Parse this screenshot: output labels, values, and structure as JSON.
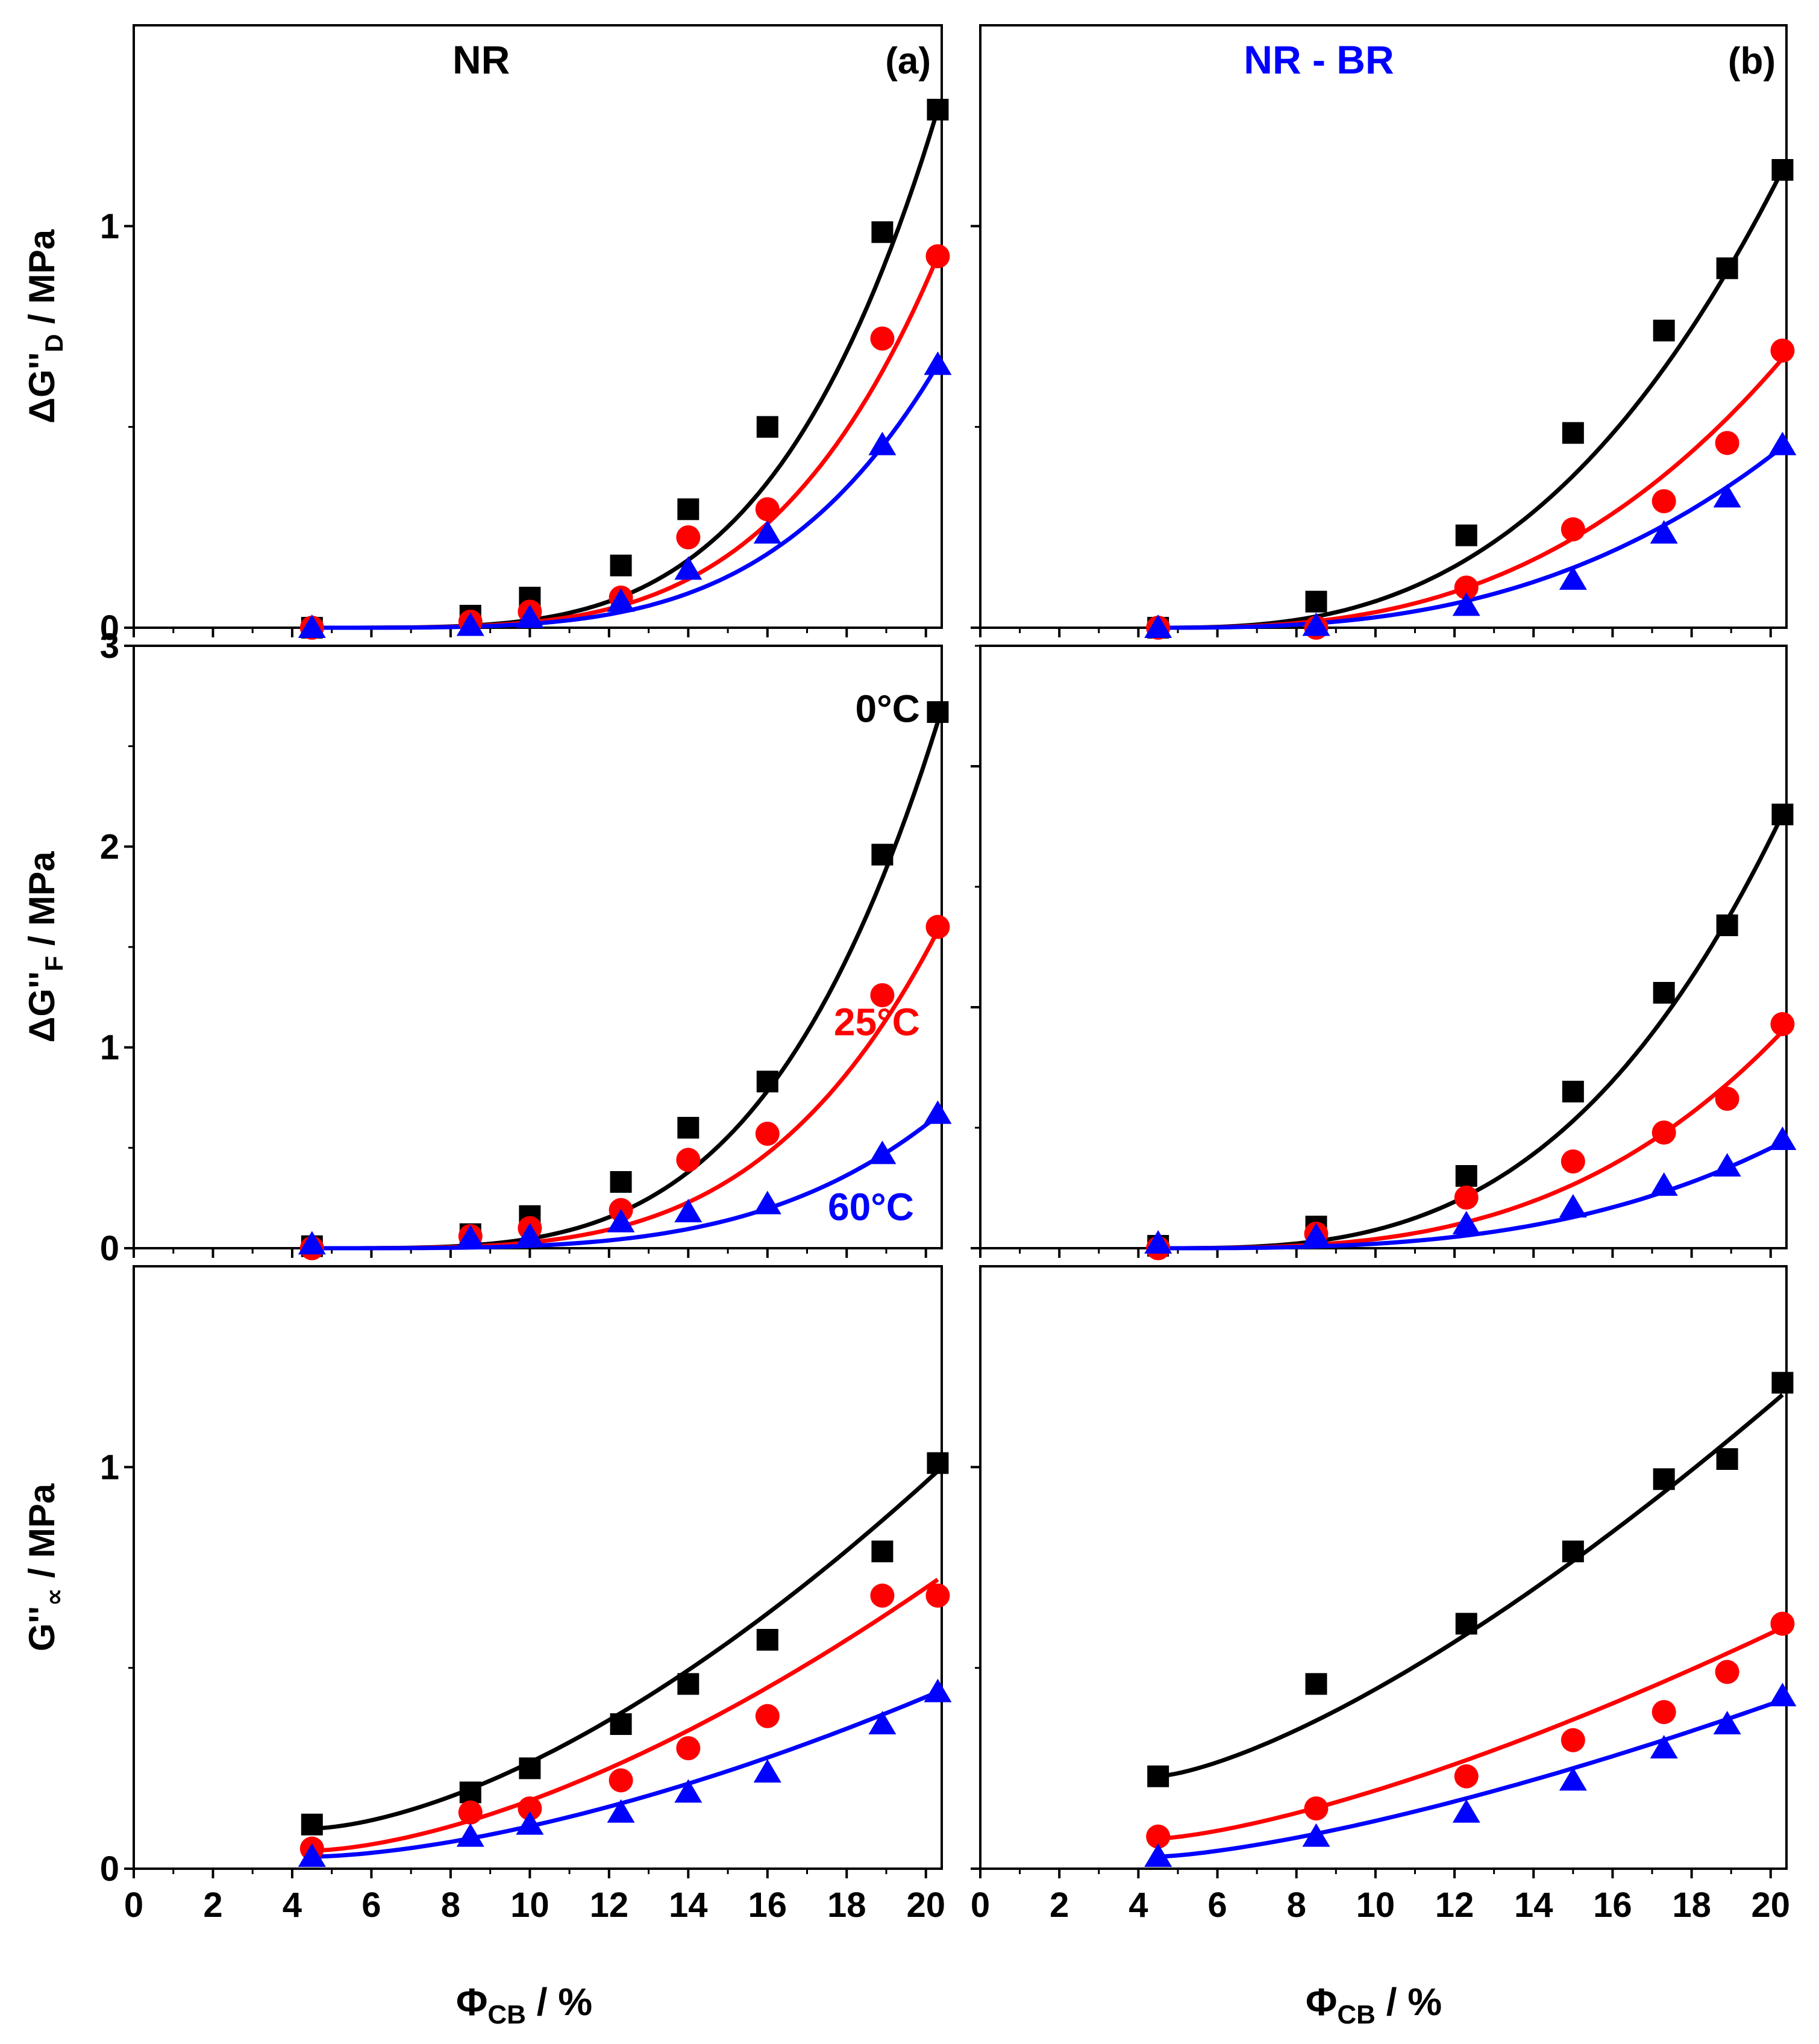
{
  "colors": {
    "black": "#000000",
    "red": "#ff0000",
    "blue": "#0000ff"
  },
  "series_meta": [
    {
      "key": "T0",
      "marker": "square",
      "color": "#000000"
    },
    {
      "key": "T25",
      "marker": "circle",
      "color": "#ff0000"
    },
    {
      "key": "T60",
      "marker": "triangle",
      "color": "#0000ff"
    }
  ],
  "chart_data": [
    {
      "id": "a-top",
      "type": "scatter",
      "column": 0,
      "row": 0,
      "title": "NR",
      "title_color": "#000000",
      "panel_label": "(a)",
      "ylabel_main": "ΔG''",
      "ylabel_sub": "D",
      "ylabel_unit": " / MPa",
      "ylim": [
        0,
        1.5
      ],
      "yticks": [
        0,
        1
      ],
      "yminor": [
        0.5
      ],
      "xlim": [
        0,
        20.4
      ],
      "xticks": [
        0,
        2,
        4,
        6,
        8,
        10,
        12,
        14,
        16,
        18,
        20
      ],
      "x": [
        4.5,
        8.5,
        10,
        12.3,
        14,
        16,
        18.9,
        20.3
      ],
      "series": [
        {
          "name": "0°C",
          "values": [
            0.0,
            0.03,
            0.075,
            0.155,
            0.295,
            0.5,
            0.985,
            1.29
          ]
        },
        {
          "name": "25°C",
          "values": [
            0.0,
            0.015,
            0.04,
            0.075,
            0.225,
            0.295,
            0.72,
            0.925
          ]
        },
        {
          "name": "60°C",
          "values": [
            0.0,
            0.005,
            0.025,
            0.065,
            0.145,
            0.235,
            0.455,
            0.655
          ]
        }
      ],
      "fit_exponent": 4.0,
      "fit_end": [
        1.29,
        0.925,
        0.655
      ]
    },
    {
      "id": "b-top",
      "type": "scatter",
      "column": 1,
      "row": 0,
      "title": "NR - BR",
      "title_color": "#0000ff",
      "panel_label": "(b)",
      "ylim": [
        0,
        1.5
      ],
      "yticks": [
        0,
        1
      ],
      "yminor": [
        0.5
      ],
      "xlim": [
        0,
        20.4
      ],
      "xticks": [
        0,
        2,
        4,
        6,
        8,
        10,
        12,
        14,
        16,
        18,
        20
      ],
      "x": [
        4.5,
        8.5,
        12.3,
        15,
        17.3,
        18.9,
        20.3
      ],
      "series": [
        {
          "name": "0°C",
          "values": [
            0.0,
            0.065,
            0.23,
            0.485,
            0.74,
            0.895,
            1.14
          ]
        },
        {
          "name": "25°C",
          "values": [
            0.0,
            0.0,
            0.1,
            0.245,
            0.315,
            0.46,
            0.69
          ]
        },
        {
          "name": "60°C",
          "values": [
            0.0,
            0.005,
            0.055,
            0.12,
            0.235,
            0.325,
            0.455
          ]
        }
      ],
      "fit_exponent": 2.7,
      "fit_end": [
        1.14,
        0.67,
        0.45
      ]
    },
    {
      "id": "a-mid",
      "type": "scatter",
      "column": 0,
      "row": 1,
      "ylabel_main": "ΔG''",
      "ylabel_sub": "F",
      "ylabel_unit": " / MPa",
      "ylim": [
        0,
        3.0
      ],
      "yticks": [
        0,
        1,
        2,
        3
      ],
      "yminor": [
        0.5,
        1.5,
        2.5
      ],
      "xlim": [
        0,
        20.4
      ],
      "xticks": [
        0,
        2,
        4,
        6,
        8,
        10,
        12,
        14,
        16,
        18,
        20
      ],
      "x": [
        4.5,
        8.5,
        10,
        12.3,
        14,
        16,
        18.9,
        20.3
      ],
      "series": [
        {
          "name": "0°C",
          "values": [
            0.01,
            0.07,
            0.16,
            0.33,
            0.6,
            0.83,
            1.96,
            2.67
          ]
        },
        {
          "name": "25°C",
          "values": [
            0.0,
            0.06,
            0.1,
            0.19,
            0.44,
            0.57,
            1.26,
            1.6
          ]
        },
        {
          "name": "60°C",
          "values": [
            0.02,
            0.05,
            0.06,
            0.13,
            0.18,
            0.22,
            0.47,
            0.67
          ]
        }
      ],
      "fit_exponent": 3.8,
      "fit_end": [
        2.62,
        1.58,
        0.66
      ],
      "annotations": [
        {
          "text": "0°C",
          "color": "#000000",
          "at_x": 19.85,
          "at_y": 2.68
        },
        {
          "text": "25°C",
          "color": "#ff0000",
          "at_x": 19.85,
          "at_y": 1.12
        },
        {
          "text": "60°C",
          "color": "#0000ff",
          "at_x": 19.7,
          "at_y": 0.2
        }
      ]
    },
    {
      "id": "b-mid",
      "type": "scatter",
      "column": 1,
      "row": 1,
      "ylim": [
        0,
        2.5
      ],
      "yticks": [
        0,
        1,
        2
      ],
      "yminor": [
        0.5,
        1.5,
        2.5
      ],
      "xlim": [
        0,
        20.4
      ],
      "xticks": [
        0,
        2,
        4,
        6,
        8,
        10,
        12,
        14,
        16,
        18,
        20
      ],
      "x": [
        4.5,
        8.5,
        12.3,
        15,
        17.3,
        18.9,
        20.3
      ],
      "series": [
        {
          "name": "0°C",
          "values": [
            0.01,
            0.09,
            0.3,
            0.65,
            1.06,
            1.34,
            1.8
          ]
        },
        {
          "name": "25°C",
          "values": [
            0.0,
            0.06,
            0.21,
            0.36,
            0.48,
            0.62,
            0.93
          ]
        },
        {
          "name": "60°C",
          "values": [
            0.02,
            0.05,
            0.1,
            0.17,
            0.26,
            0.34,
            0.45
          ]
        }
      ],
      "fit_exponent": 3.0,
      "fit_end": [
        1.8,
        0.9,
        0.44
      ]
    },
    {
      "id": "a-bot",
      "type": "scatter",
      "column": 0,
      "row": 2,
      "ylabel_main": "G''",
      "ylabel_sub": "∝",
      "ylabel_unit": " / MPa",
      "ylim": [
        0,
        1.5
      ],
      "yticks": [
        0,
        1
      ],
      "yminor": [
        0.5
      ],
      "xlim": [
        0,
        20.4
      ],
      "xticks": [
        0,
        2,
        4,
        6,
        8,
        10,
        12,
        14,
        16,
        18,
        20
      ],
      "x": [
        4.5,
        8.5,
        10,
        12.3,
        14,
        16,
        18.9,
        20.3
      ],
      "series": [
        {
          "name": "0°C",
          "values": [
            0.11,
            0.19,
            0.25,
            0.36,
            0.46,
            0.57,
            0.79,
            1.01
          ]
        },
        {
          "name": "25°C",
          "values": [
            0.05,
            0.14,
            0.15,
            0.22,
            0.3,
            0.38,
            0.68,
            0.68
          ]
        },
        {
          "name": "60°C",
          "values": [
            0.03,
            0.08,
            0.11,
            0.14,
            0.19,
            0.24,
            0.36,
            0.44
          ]
        }
      ],
      "fit_exponent": 1.6,
      "fit_start": [
        0.1,
        0.045,
        0.03
      ],
      "fit_end": [
        0.99,
        0.72,
        0.44
      ]
    },
    {
      "id": "b-bot",
      "type": "scatter",
      "column": 1,
      "row": 2,
      "ylim": [
        0,
        1.5
      ],
      "yticks": [
        0,
        1
      ],
      "yminor": [
        0.5
      ],
      "xlim": [
        0,
        20.4
      ],
      "xticks": [
        0,
        2,
        4,
        6,
        8,
        10,
        12,
        14,
        16,
        18,
        20
      ],
      "x": [
        4.5,
        8.5,
        12.3,
        15,
        17.3,
        18.9,
        20.3
      ],
      "series": [
        {
          "name": "0°C",
          "values": [
            0.23,
            0.46,
            0.61,
            0.79,
            0.97,
            1.02,
            1.21
          ]
        },
        {
          "name": "25°C",
          "values": [
            0.08,
            0.15,
            0.23,
            0.32,
            0.39,
            0.49,
            0.61
          ]
        },
        {
          "name": "60°C",
          "values": [
            0.03,
            0.08,
            0.14,
            0.22,
            0.3,
            0.36,
            0.43
          ]
        }
      ],
      "fit_exponent": 1.4,
      "fit_start": [
        0.23,
        0.075,
        0.03
      ],
      "fit_end": [
        1.18,
        0.6,
        0.42
      ]
    }
  ],
  "xlabel": {
    "main": "Φ",
    "sub": "CB",
    "unit": " / %"
  }
}
